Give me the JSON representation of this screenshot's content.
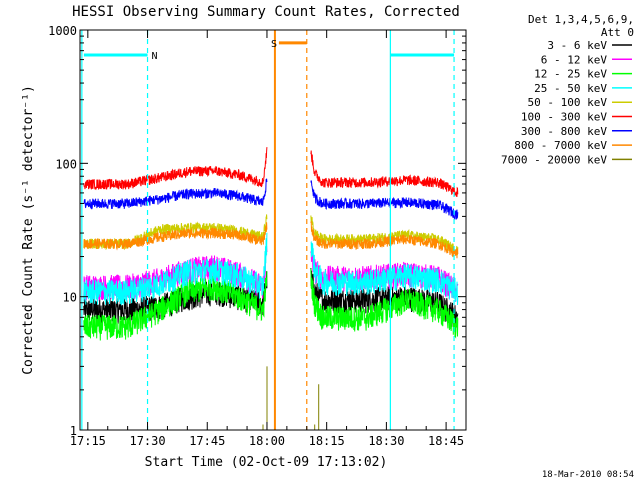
{
  "chart_data": {
    "type": "line",
    "title": "HESSI Observing Summary Count Rates, Corrected",
    "xlabel": "Start Time (02-Oct-09 17:13:02)",
    "ylabel": "Corrected Count Rate (s⁻¹ detector⁻¹)",
    "x_ticks": [
      "17:15",
      "17:30",
      "17:45",
      "18:00",
      "18:15",
      "18:30",
      "18:45"
    ],
    "y_ticks": [
      "1",
      "10",
      "100",
      "1000"
    ],
    "y_scale": "log",
    "ylim": [
      1,
      1000
    ],
    "xlim": [
      "17:13:02",
      "18:50:00"
    ],
    "grid": false,
    "legend": {
      "header_line1": "Det 1,3,4,5,6,9,",
      "header_line2": "Att 0",
      "placement": "right"
    },
    "series": [
      {
        "name": "3 - 6 keV",
        "color": "#000000",
        "x": [
          "17:14",
          "17:25",
          "17:33",
          "17:40",
          "17:47",
          "17:53",
          "17:59",
          "18:00",
          "18:11",
          "18:12",
          "18:14",
          "18:25",
          "18:35",
          "18:43",
          "18:48"
        ],
        "values": [
          8,
          8,
          8.5,
          10,
          11,
          10,
          9,
          14,
          14,
          11,
          9.5,
          9.5,
          10,
          9,
          7
        ]
      },
      {
        "name": "6 - 12 keV",
        "color": "#ff00ff",
        "x": [
          "17:14",
          "17:25",
          "17:33",
          "17:40",
          "17:47",
          "17:53",
          "17:59",
          "18:00",
          "18:11",
          "18:12",
          "18:14",
          "18:25",
          "18:35",
          "18:43",
          "18:48"
        ],
        "values": [
          12,
          12,
          13.5,
          16,
          17,
          15,
          12,
          22,
          22,
          16,
          14,
          14,
          15,
          14,
          11
        ]
      },
      {
        "name": "12 - 25 keV",
        "color": "#00ff00",
        "x": [
          "17:14",
          "17:25",
          "17:33",
          "17:40",
          "17:47",
          "17:53",
          "17:59",
          "18:00",
          "18:11",
          "18:12",
          "18:14",
          "18:25",
          "18:35",
          "18:43",
          "18:48"
        ],
        "values": [
          6,
          6,
          8,
          11,
          12,
          10,
          8,
          14,
          14,
          9,
          7,
          7,
          9.5,
          8,
          6
        ]
      },
      {
        "name": "25 - 50 keV",
        "color": "#00ffff",
        "x": [
          "17:14",
          "17:25",
          "17:33",
          "17:40",
          "17:47",
          "17:53",
          "17:59",
          "18:00",
          "18:11",
          "18:12",
          "18:14",
          "18:25",
          "18:35",
          "18:43",
          "18:48"
        ],
        "values": [
          11,
          11,
          12.5,
          15.5,
          16,
          14.5,
          12,
          28,
          28,
          16,
          13,
          13,
          14.5,
          13.5,
          11
        ]
      },
      {
        "name": "50 - 100 keV",
        "color": "#cccc00",
        "x": [
          "17:14",
          "17:25",
          "17:33",
          "17:40",
          "17:47",
          "17:53",
          "17:59",
          "18:00",
          "18:11",
          "18:12",
          "18:14",
          "18:25",
          "18:35",
          "18:43",
          "18:48"
        ],
        "values": [
          25,
          25,
          32,
          33,
          33,
          31,
          28,
          40,
          40,
          30,
          27,
          27,
          29,
          27,
          22
        ]
      },
      {
        "name": "100 - 300 keV",
        "color": "#ff0000",
        "x": [
          "17:14",
          "17:25",
          "17:33",
          "17:40",
          "17:47",
          "17:53",
          "17:59",
          "18:00",
          "18:11",
          "18:12",
          "18:14",
          "18:25",
          "18:35",
          "18:43",
          "18:48"
        ],
        "values": [
          70,
          70,
          78,
          87,
          88,
          82,
          72,
          125,
          125,
          85,
          72,
          72,
          75,
          72,
          60
        ]
      },
      {
        "name": "300 - 800 keV",
        "color": "#0000ff",
        "x": [
          "17:14",
          "17:25",
          "17:33",
          "17:40",
          "17:47",
          "17:53",
          "17:59",
          "18:00",
          "18:11",
          "18:12",
          "18:14",
          "18:25",
          "18:35",
          "18:43",
          "18:48"
        ],
        "values": [
          50,
          50,
          54,
          59,
          60,
          57,
          51,
          75,
          75,
          55,
          50,
          50,
          51,
          49,
          41
        ]
      },
      {
        "name": "800 - 7000 keV",
        "color": "#ff8800",
        "x": [
          "17:14",
          "17:25",
          "17:33",
          "17:40",
          "17:47",
          "17:53",
          "17:59",
          "18:00",
          "18:11",
          "18:12",
          "18:14",
          "18:25",
          "18:35",
          "18:43",
          "18:48"
        ],
        "values": [
          25,
          25,
          28,
          30,
          30,
          29,
          26,
          35,
          35,
          27,
          25,
          25,
          27,
          25,
          21
        ]
      },
      {
        "name": "7000 - 20000 keV",
        "color": "#808000",
        "x": [
          "17:59",
          "18:00",
          "18:12",
          "18:13"
        ],
        "values": [
          1.1,
          3,
          1.1,
          2.2
        ]
      }
    ],
    "annotations": {
      "top_bars": [
        {
          "label": "N",
          "color": "#00ffff",
          "x_start": "17:14",
          "x_end": "17:30",
          "level": 650,
          "label_x": "17:31"
        },
        {
          "label": "S",
          "color": "#ff8800",
          "x_start": "18:03",
          "x_end": "18:10",
          "level": 800,
          "label_x": "18:01"
        },
        {
          "label": "",
          "color": "#00ffff",
          "x_start": "18:31",
          "x_end": "18:47",
          "level": 650
        }
      ],
      "vertical_lines": [
        {
          "x": "17:13:30",
          "color": "#00ffff",
          "style": "solid"
        },
        {
          "x": "17:30",
          "color": "#00ffff",
          "style": "dashed"
        },
        {
          "x": "18:02",
          "color": "#ff8800",
          "style": "solid"
        },
        {
          "x": "18:10",
          "color": "#ff8800",
          "style": "dashed"
        },
        {
          "x": "18:31",
          "color": "#00ffff",
          "style": "solid"
        },
        {
          "x": "18:47",
          "color": "#00ffff",
          "style": "dashed"
        }
      ]
    }
  },
  "footer_timestamp": "18-Mar-2010 08:54"
}
